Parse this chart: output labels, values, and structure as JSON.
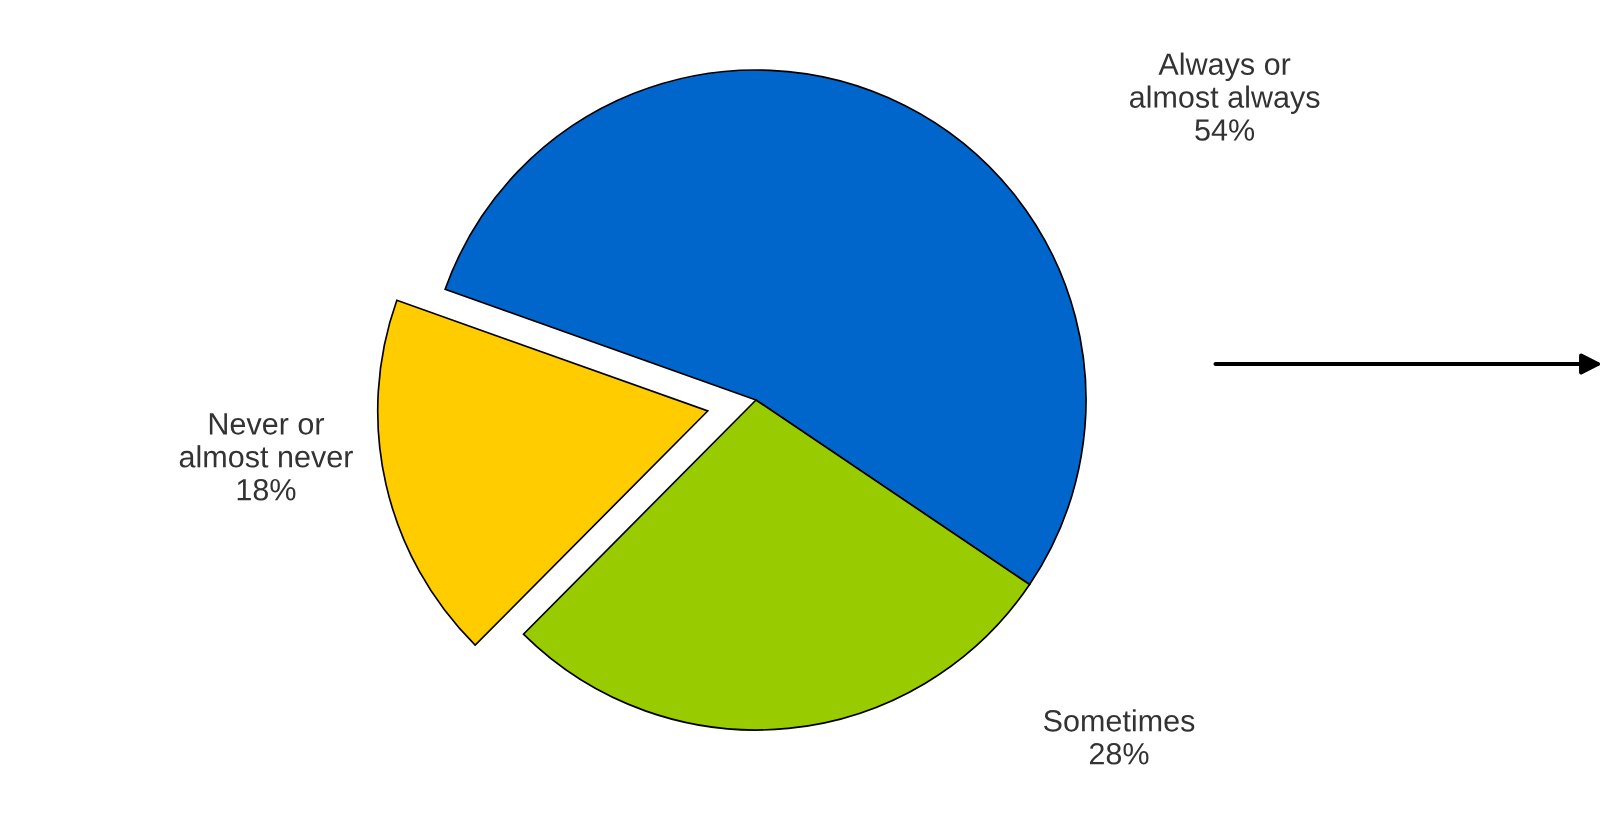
{
  "chart_data": {
    "type": "pie",
    "categories": [
      "Always or\nalmost always",
      "Sometimes",
      "Never or\nalmost never"
    ],
    "values": [
      54,
      28,
      18
    ],
    "colors": [
      "#0066cc",
      "#99cc00",
      "#ffcc00"
    ],
    "value_labels": [
      "54%",
      "28%",
      "18%"
    ]
  }
}
